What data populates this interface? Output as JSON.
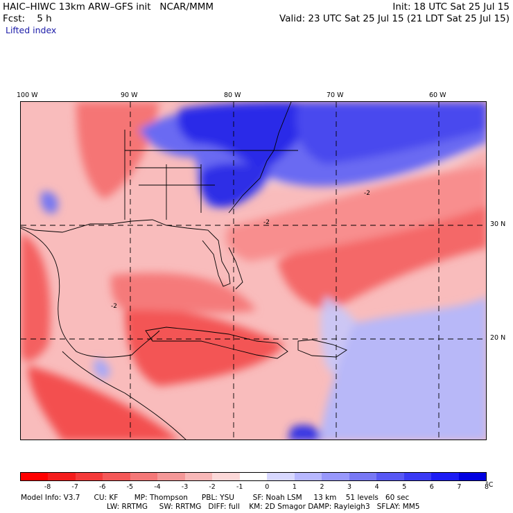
{
  "header": {
    "line1_left": "HAIC–HIWC 13km ARW–GFS init   NCAR/MMM",
    "line1_right": "Init: 18 UTC Sat 25 Jul 15",
    "line2_left": "Fcst:    5 h",
    "line2_right": "Valid: 23 UTC Sat 25 Jul 15 (21 LDT Sat 25 Jul 15)",
    "field_name": "Lifted index"
  },
  "map": {
    "lon_labels": [
      "100 W",
      "90 W",
      "80 W",
      "70 W",
      "60 W"
    ],
    "lat_labels": [
      "30 N",
      "20 N"
    ],
    "contour_label": "-2"
  },
  "colorbar": {
    "colors": [
      "#ff0000",
      "#f41c1c",
      "#f43a3a",
      "#f45858",
      "#f47878",
      "#f49898",
      "#f8b8b8",
      "#fcd8d8",
      "#ffffff",
      "#d8d8ff",
      "#b8b8ff",
      "#9898fc",
      "#7878f4",
      "#5858f4",
      "#3a3af4",
      "#1c1cf4",
      "#0000e0"
    ],
    "tick_labels": [
      "-8",
      "-7",
      "-6",
      "-5",
      "-4",
      "-3",
      "-2",
      "-1",
      "0",
      "1",
      "2",
      "3",
      "4",
      "5",
      "6",
      "7",
      "8"
    ],
    "unit": "°C"
  },
  "footer": {
    "line1": "Model Info: V3.7      CU: KF       MP: Thompson      PBL: YSU        SF: Noah LSM     13 km    51 levels   60 sec",
    "line2": "LW: RRTMG     SW: RRTMG   DIFF: full    KM: 2D Smagor DAMP: Rayleigh3   SFLAY: MM5"
  }
}
